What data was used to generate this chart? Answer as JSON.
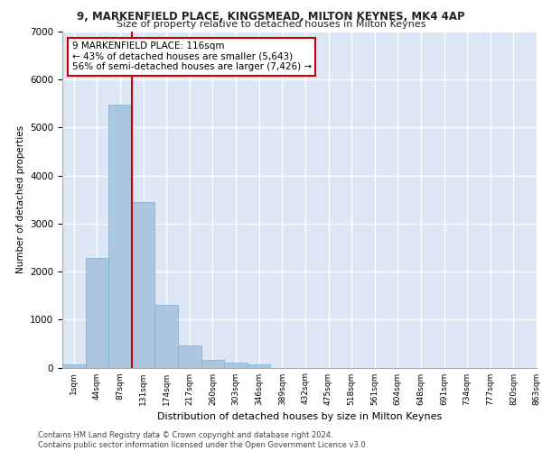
{
  "title_line1": "9, MARKENFIELD PLACE, KINGSMEAD, MILTON KEYNES, MK4 4AP",
  "title_line2": "Size of property relative to detached houses in Milton Keynes",
  "xlabel": "Distribution of detached houses by size in Milton Keynes",
  "ylabel": "Number of detached properties",
  "bar_values": [
    75,
    2280,
    5480,
    3450,
    1310,
    460,
    160,
    95,
    65,
    0,
    0,
    0,
    0,
    0,
    0,
    0,
    0,
    0,
    0,
    0
  ],
  "x_labels": [
    "1sqm",
    "44sqm",
    "87sqm",
    "131sqm",
    "174sqm",
    "217sqm",
    "260sqm",
    "303sqm",
    "346sqm",
    "389sqm",
    "432sqm",
    "475sqm",
    "518sqm",
    "561sqm",
    "604sqm",
    "648sqm",
    "691sqm",
    "734sqm",
    "777sqm",
    "820sqm",
    "863sqm"
  ],
  "bar_color": "#adc6e0",
  "bar_edgecolor": "#7aafd4",
  "bg_color": "#dce6f5",
  "grid_color": "#ffffff",
  "vline_x": 2.5,
  "vline_color": "#cc0000",
  "annotation_text": "9 MARKENFIELD PLACE: 116sqm\n← 43% of detached houses are smaller (5,643)\n56% of semi-detached houses are larger (7,426) →",
  "annotation_box_color": "#ffffff",
  "annotation_box_edgecolor": "#cc0000",
  "footer_text": "Contains HM Land Registry data © Crown copyright and database right 2024.\nContains public sector information licensed under the Open Government Licence v3.0.",
  "ylim": [
    0,
    7000
  ],
  "yticks": [
    0,
    1000,
    2000,
    3000,
    4000,
    5000,
    6000,
    7000
  ]
}
